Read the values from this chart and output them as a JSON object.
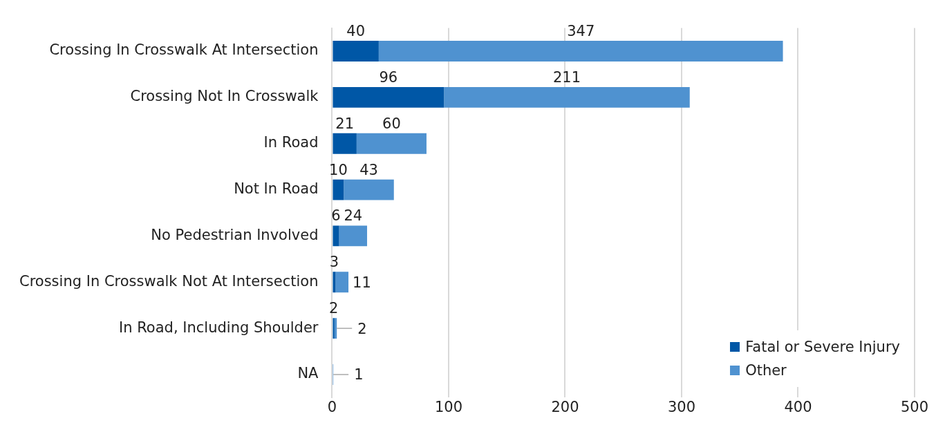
{
  "chart_data": {
    "type": "bar",
    "orientation": "horizontal",
    "stacked": true,
    "categories": [
      "Crossing In Crosswalk At Intersection",
      "Crossing Not In Crosswalk",
      "In Road",
      "Not In Road",
      "No Pedestrian Involved",
      "Crossing In Crosswalk Not At Intersection",
      "In Road, Including Shoulder",
      "NA"
    ],
    "series": [
      {
        "name": "Fatal or Severe Injury",
        "color": "#0057a6",
        "values": [
          40,
          96,
          21,
          10,
          6,
          3,
          2,
          null
        ]
      },
      {
        "name": "Other",
        "color": "#4f92d0",
        "values": [
          347,
          211,
          60,
          43,
          24,
          11,
          2,
          1
        ]
      }
    ],
    "xlim": [
      0,
      500
    ],
    "xticks": [
      0,
      100,
      200,
      300,
      400,
      500
    ],
    "grid": "x",
    "legend": "bottom right",
    "data_labels": true
  }
}
